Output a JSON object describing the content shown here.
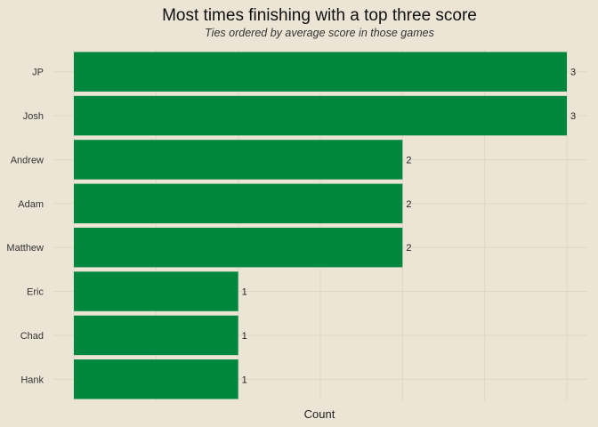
{
  "chart_data": {
    "type": "bar",
    "orientation": "horizontal",
    "title": "Most times finishing with a top three score",
    "subtitle": "Ties ordered by average score in those games",
    "xlabel": "Count",
    "ylabel": "",
    "categories": [
      "JP",
      "Josh",
      "Andrew",
      "Adam",
      "Matthew",
      "Eric",
      "Chad",
      "Hank"
    ],
    "values": [
      3,
      3,
      2,
      2,
      2,
      1,
      1,
      1
    ],
    "xlim": [
      0,
      3
    ],
    "x_ticks_shown": false,
    "grid": true,
    "legend": "none",
    "bar_color": "#00873e",
    "background_color": "#ece4d4"
  }
}
